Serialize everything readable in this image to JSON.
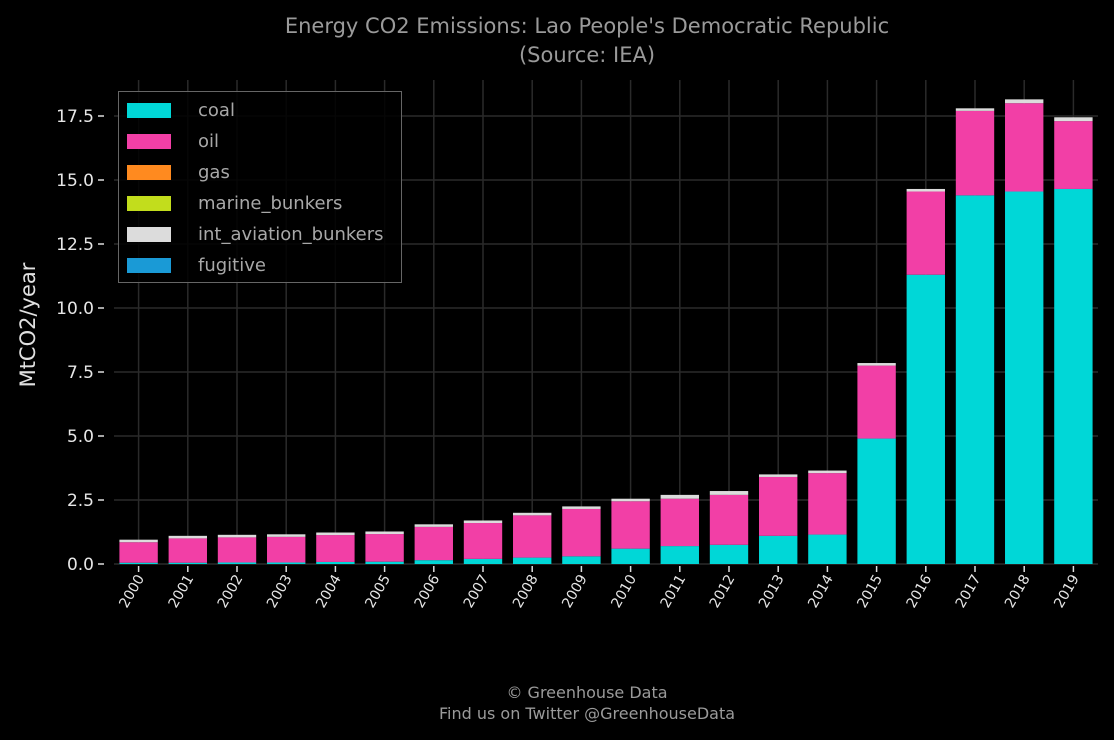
{
  "chart_data": {
    "type": "bar",
    "stacked": true,
    "title": "Energy CO2 Emissions: Lao People's Democratic Republic",
    "subtitle": "(Source: IEA)",
    "xlabel": "",
    "ylabel": "MtCO2/year",
    "ylim": [
      0,
      19
    ],
    "yticks": [
      "0.0",
      "2.5",
      "5.0",
      "7.5",
      "10.0",
      "12.5",
      "15.0",
      "17.5"
    ],
    "grid": true,
    "legend_position": "top-left",
    "categories": [
      "2000",
      "2001",
      "2002",
      "2003",
      "2004",
      "2005",
      "2006",
      "2007",
      "2008",
      "2009",
      "2010",
      "2011",
      "2012",
      "2013",
      "2014",
      "2015",
      "2016",
      "2017",
      "2018",
      "2019"
    ],
    "series": [
      {
        "name": "coal",
        "color": "#00d7d7",
        "values": [
          0.05,
          0.05,
          0.06,
          0.06,
          0.08,
          0.09,
          0.15,
          0.2,
          0.25,
          0.3,
          0.6,
          0.7,
          0.75,
          1.1,
          1.15,
          4.9,
          11.3,
          14.4,
          14.55,
          14.65
        ]
      },
      {
        "name": "oil",
        "color": "#f23fa6",
        "values": [
          0.8,
          0.95,
          0.98,
          1.0,
          1.05,
          1.08,
          1.3,
          1.4,
          1.65,
          1.85,
          1.85,
          1.85,
          1.95,
          2.3,
          2.4,
          2.85,
          3.25,
          3.3,
          3.45,
          2.65
        ]
      },
      {
        "name": "gas",
        "color": "#ff8a1f",
        "values": [
          0,
          0,
          0,
          0,
          0,
          0,
          0,
          0,
          0,
          0,
          0,
          0,
          0,
          0,
          0,
          0,
          0,
          0,
          0,
          0
        ]
      },
      {
        "name": "marine_bunkers",
        "color": "#c2dd1c",
        "values": [
          0,
          0,
          0,
          0,
          0,
          0,
          0,
          0,
          0,
          0,
          0,
          0,
          0,
          0,
          0,
          0,
          0,
          0,
          0,
          0
        ]
      },
      {
        "name": "int_aviation_bunkers",
        "color": "#dcdcdc",
        "values": [
          0.1,
          0.1,
          0.1,
          0.1,
          0.1,
          0.1,
          0.1,
          0.1,
          0.1,
          0.1,
          0.1,
          0.15,
          0.15,
          0.1,
          0.1,
          0.1,
          0.1,
          0.1,
          0.15,
          0.15
        ]
      },
      {
        "name": "fugitive",
        "color": "#1a9ad6",
        "values": [
          0,
          0,
          0,
          0,
          0,
          0,
          0,
          0,
          0,
          0,
          0,
          0,
          0,
          0,
          0,
          0,
          0,
          0,
          0,
          0
        ]
      }
    ]
  },
  "footer": {
    "line1": "© Greenhouse Data",
    "line2": "Find us on Twitter @GreenhouseData"
  }
}
